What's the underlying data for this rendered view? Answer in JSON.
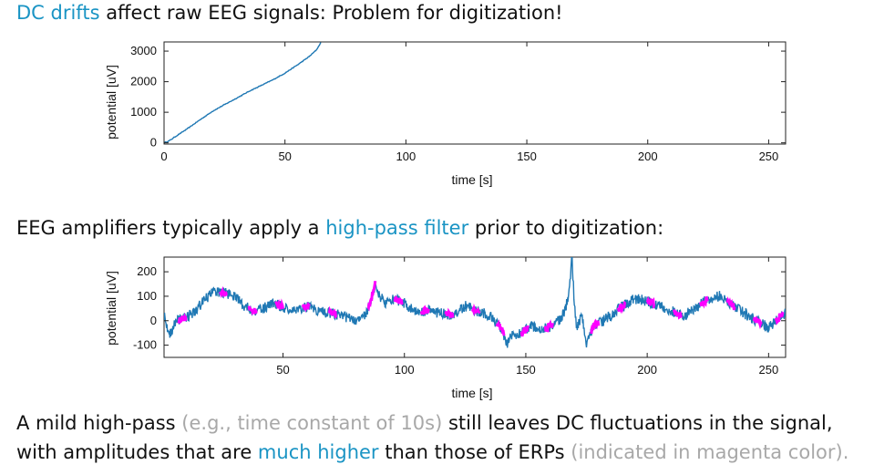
{
  "text": {
    "heading1": {
      "part1": "DC drifts",
      "part2": " affect raw EEG signals: Problem for digitization!"
    },
    "heading2": {
      "part1": "EEG amplifiers typically apply a ",
      "part2": "high-pass filter",
      "part3": " prior to digitization:"
    },
    "para_line1": {
      "part1": "A mild high-pass ",
      "part2": "(e.g., time constant of 10s)",
      "part3": " still leaves DC fluctuations in the signal,"
    },
    "para_line2": {
      "part1": "with amplitudes that are ",
      "part2": "much higher",
      "part3": " than those of ERPs ",
      "part4": "(indicated in magenta color)."
    }
  },
  "colors": {
    "accent": "#1a94c4",
    "trace": "#1f78b4",
    "erp": "#ff00ff",
    "grey_text": "#a8a8a8"
  },
  "chart_data": [
    {
      "type": "line",
      "xlabel": "time  [s]",
      "ylabel": "potential  [uV]",
      "xlim": [
        0,
        257
      ],
      "ylim": [
        -40,
        3300
      ],
      "x_ticks": [
        0,
        50,
        100,
        150,
        200,
        250
      ],
      "y_ticks": [
        0,
        1000,
        2000,
        3000
      ],
      "grid": false,
      "series": [
        {
          "x": [
            0,
            2,
            5,
            10,
            15,
            20,
            25,
            30,
            35,
            40,
            45,
            50,
            55,
            60,
            63,
            65
          ],
          "y": [
            0,
            60,
            220,
            480,
            760,
            1030,
            1250,
            1460,
            1680,
            1870,
            2060,
            2280,
            2540,
            2820,
            3040,
            3300
          ]
        }
      ]
    },
    {
      "type": "line",
      "xlabel": "time  [s]",
      "ylabel": "potential  [uV]",
      "xlim": [
        1,
        257
      ],
      "ylim": [
        -150,
        260
      ],
      "x_ticks": [
        50,
        100,
        150,
        200,
        250
      ],
      "y_ticks": [
        -100,
        0,
        100,
        200
      ],
      "grid": false,
      "series": [
        {
          "x": [
            1,
            3,
            6,
            10,
            14,
            18,
            22,
            26,
            30,
            34,
            38,
            42,
            46,
            50,
            55,
            60,
            65,
            70,
            75,
            80,
            84,
            86,
            88,
            90,
            92,
            96,
            100,
            105,
            110,
            115,
            120,
            125,
            130,
            135,
            140,
            142,
            144,
            148,
            152,
            156,
            160,
            164,
            166,
            168,
            169,
            170,
            171,
            173,
            175,
            178,
            182,
            186,
            190,
            195,
            200,
            205,
            210,
            215,
            220,
            225,
            230,
            235,
            240,
            245,
            250,
            255,
            257
          ],
          "y": [
            20,
            -60,
            0,
            10,
            40,
            90,
            120,
            115,
            100,
            60,
            40,
            50,
            70,
            55,
            45,
            60,
            40,
            30,
            20,
            0,
            30,
            70,
            150,
            100,
            70,
            90,
            70,
            30,
            45,
            30,
            20,
            60,
            40,
            20,
            -30,
            -100,
            -60,
            -55,
            -20,
            -40,
            -25,
            0,
            40,
            120,
            260,
            60,
            -30,
            20,
            -90,
            -20,
            0,
            30,
            60,
            90,
            80,
            60,
            40,
            20,
            50,
            90,
            100,
            60,
            30,
            0,
            -30,
            20,
            30
          ]
        },
        {
          "name": "ERP",
          "segments_x": [
            [
              7,
              10
            ],
            [
              24,
              27
            ],
            [
              36,
              39
            ],
            [
              47,
              50
            ],
            [
              58,
              61
            ],
            [
              69,
              72
            ],
            [
              85,
              88
            ],
            [
              96,
              99
            ],
            [
              107,
              110
            ],
            [
              117,
              120
            ],
            [
              128,
              131
            ],
            [
              138,
              141
            ],
            [
              148,
              151
            ],
            [
              158,
              161
            ],
            [
              177,
              180
            ],
            [
              188,
              191
            ],
            [
              200,
              203
            ],
            [
              211,
              214
            ],
            [
              222,
              225
            ],
            [
              233,
              236
            ],
            [
              244,
              247
            ],
            [
              253,
              256
            ]
          ]
        }
      ]
    }
  ]
}
